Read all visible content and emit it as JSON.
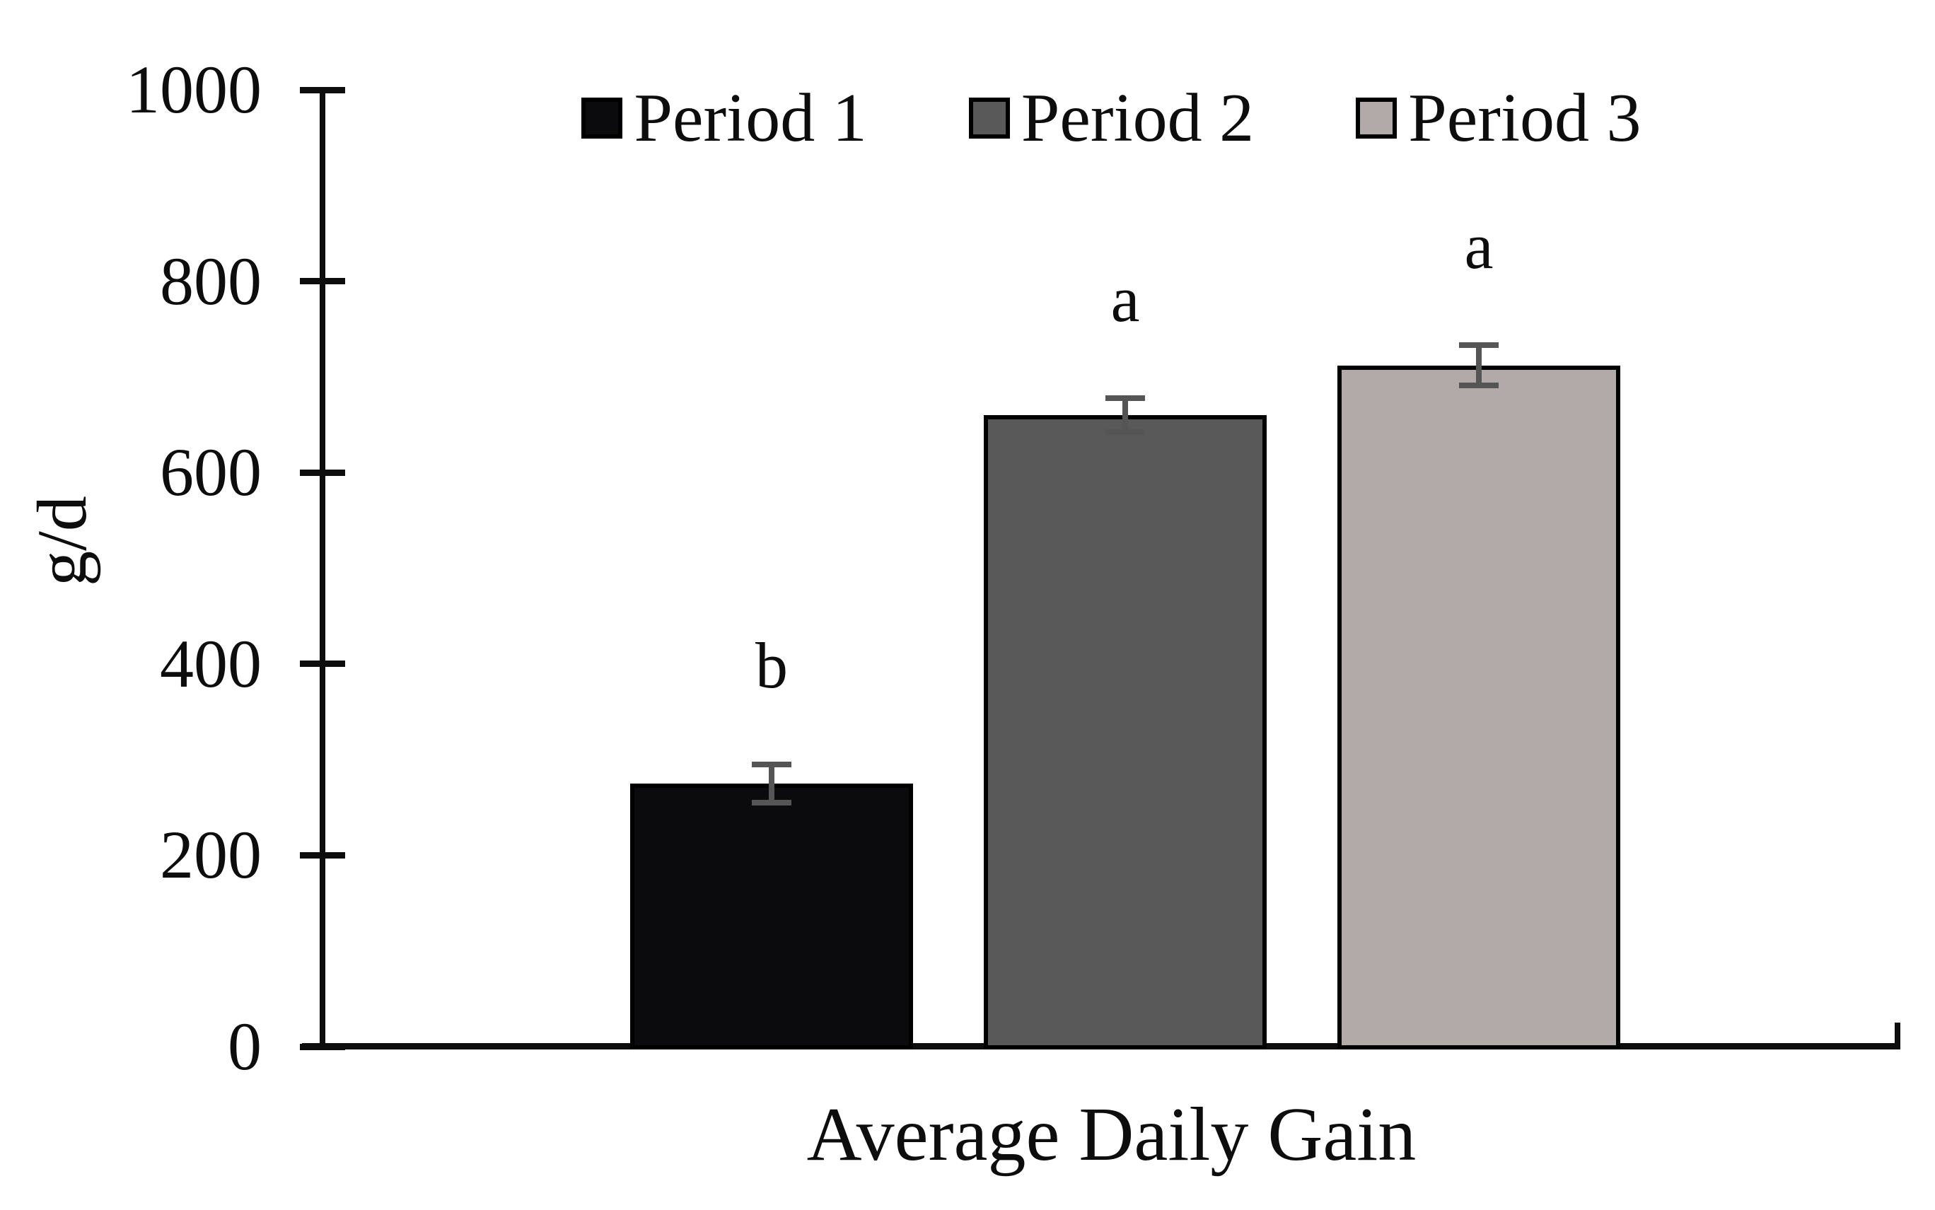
{
  "figure_title": "Average Daily Gain bar chart",
  "chart_data": {
    "type": "bar",
    "title": "",
    "xlabel": "Average Daily Gain",
    "ylabel": "g/d",
    "ylim": [
      0,
      1000
    ],
    "yticks": [
      0,
      200,
      400,
      600,
      800,
      1000
    ],
    "categories": [
      "Average Daily Gain"
    ],
    "series": [
      {
        "name": "Period 1",
        "values": [
          275
        ],
        "errors": [
          20
        ],
        "sig_letters": [
          "b"
        ],
        "color": "#0b0b0d"
      },
      {
        "name": "Period 2",
        "values": [
          660
        ],
        "errors": [
          18
        ],
        "sig_letters": [
          "a"
        ],
        "color": "#595959"
      },
      {
        "name": "Period 3",
        "values": [
          712
        ],
        "errors": [
          21
        ],
        "sig_letters": [
          "a"
        ],
        "color": "#b2aaa8"
      }
    ],
    "bar_border_color": "#000000",
    "error_bar_color": "#555555",
    "axis_color": "#0d0d0d",
    "text_color": "#0d0d0d",
    "background_color": "#ffffff",
    "legend_position": "top",
    "grid": false
  }
}
